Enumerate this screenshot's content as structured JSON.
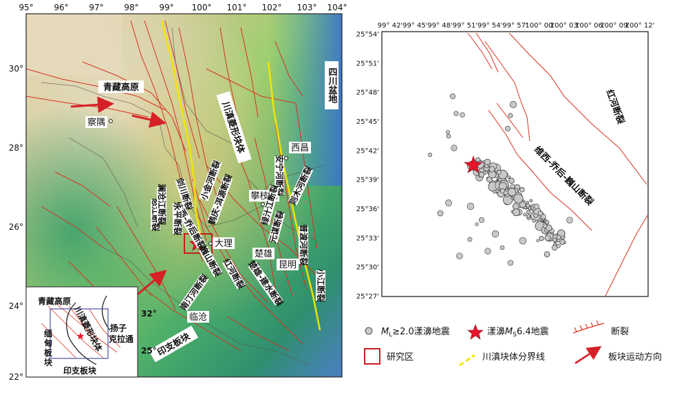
{
  "left_map": {
    "lon_ticks": [
      "95°",
      "96°",
      "97°",
      "98°",
      "99°",
      "100°",
      "101°",
      "102°",
      "103°",
      "104°"
    ],
    "lat_ticks": [
      "30°",
      "28°",
      "26°",
      "24°",
      "22°"
    ],
    "regions": {
      "qingzang": "青藏高原",
      "sichuan": "四川盆地",
      "chuandian": "川滇菱形块体",
      "yinzhi": "印支板块"
    },
    "cities": {
      "chayu": "察隅",
      "xichang": "西昌",
      "panzhihua": "攀枝花",
      "dali": "大理",
      "chuxiong": "楚雄",
      "kunming": "昆明",
      "lincang": "临沧"
    },
    "faults": {
      "nujiang": "怒江断裂",
      "lancang": "澜沧江断裂",
      "jinshajiang": "金沙江断裂",
      "jianchuan": "剑川断裂",
      "xiaojinhe": "小金河断裂",
      "heqing": "鹤庆-洱源断裂",
      "weixi": "维西-乔后断裂",
      "yongping": "永平断裂",
      "weishan": "巍山断裂",
      "honghe": "红河断裂",
      "chuxiong_jianshui": "楚雄-建水断裂",
      "nantinghe": "南汀河断裂",
      "anninghe": "安宁河断裂",
      "zemuhe": "则木河断裂",
      "puduhe": "普渡河断裂",
      "yuanmou": "元谋断裂",
      "xiaojiang": "小江断裂",
      "lvzhijiang": "绿汁江断裂"
    },
    "inset": {
      "qingzang": "青藏高原",
      "chuandian": "川滇菱形块体",
      "yangzi_1": "扬子",
      "yangzi_2": "克拉通",
      "miandian_1": "缅",
      "miandian_2": "甸",
      "miandian_3": "板",
      "miandian_4": "块",
      "yinzhi": "印支板块",
      "lat_32": "32°",
      "lat_25": "25°"
    }
  },
  "right_map": {
    "lon_ticks": [
      "99° 42'",
      "99° 45'",
      "99° 48'",
      "99° 51'",
      "99° 54'",
      "99° 57'",
      "100° 00'",
      "100° 03'",
      "100° 06'",
      "100° 09'",
      "100° 12'"
    ],
    "lat_ticks": [
      "25°54'",
      "25°51'",
      "25°48'",
      "25°45'",
      "25°42'",
      "25°39'",
      "25°36'",
      "25°33'",
      "25°30'",
      "25°27'"
    ],
    "fault_labels": {
      "honghe": "红河断裂",
      "weixi": "维西-乔后-巍山断裂"
    }
  },
  "legend": {
    "earthquakes_ml": "M",
    "earthquakes_sub": "L",
    "earthquakes_rest": "≥2.0漾濞地震",
    "mainshock_prefix": "漾濞",
    "mainshock_m": "M",
    "mainshock_sub": "S",
    "mainshock_rest": "6.4地震",
    "fault": "断裂",
    "study_area": "研究区",
    "block_boundary": "川滇块体分界线",
    "plate_motion": "板块运动方向"
  },
  "colors": {
    "fault": "#d7301f",
    "star": "#e8152b",
    "arrow": "#d62027",
    "boundary": "#f2e600",
    "quake_fill": "#c8c8c8",
    "study_box": "#c81e1e"
  }
}
